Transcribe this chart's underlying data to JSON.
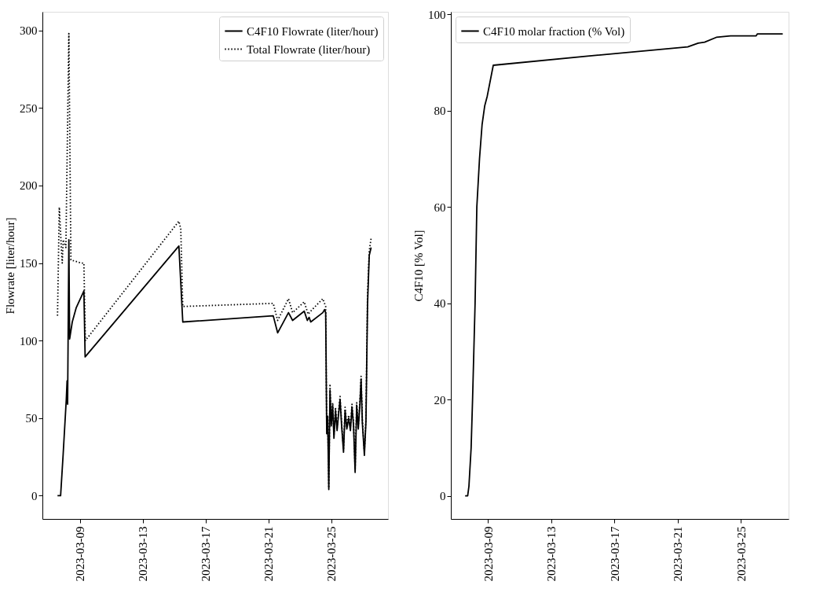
{
  "chart_data": [
    {
      "type": "line",
      "ylabel": "Flowrate [liter/hour]",
      "xlim": [
        "2023-03-06T14:30",
        "2023-03-28T15:00"
      ],
      "xticks": [
        "2023-03-09",
        "2023-03-13",
        "2023-03-17",
        "2023-03-21",
        "2023-03-25"
      ],
      "ylim": [
        -15,
        312
      ],
      "yticks": [
        0,
        50,
        100,
        150,
        200,
        250,
        300
      ],
      "grid": false,
      "legend": "top right",
      "series": [
        {
          "name": "C4F10 Flowrate (liter/hour)",
          "color": "#000000",
          "line_style": "solid",
          "x": [
            "2023-03-07T13:35",
            "2023-03-07T18:20",
            "2023-03-07T22:16",
            "2023-03-08T03:00",
            "2023-03-08T04:12",
            "2023-03-08T05:02",
            "2023-03-08T06:56",
            "2023-03-08T08:07",
            "2023-03-08T12:09",
            "2023-03-08T18:04",
            "2023-03-09T05:56",
            "2023-03-09T07:49",
            "2023-03-15T07:12",
            "2023-03-15T13:09",
            "2023-03-21T07:28",
            "2023-03-21T14:14",
            "2023-03-22T06:49",
            "2023-03-22T13:06",
            "2023-03-23T06:53",
            "2023-03-23T11:37",
            "2023-03-23T14:24",
            "2023-03-23T16:48",
            "2023-03-24T11:17",
            "2023-03-24T14:02",
            "2023-03-24T15:42",
            "2023-03-24T17:17",
            "2023-03-24T18:43",
            "2023-03-24T20:27",
            "2023-03-24T22:19",
            "2023-03-25T00:14",
            "2023-03-25T02:24",
            "2023-03-25T04:19",
            "2023-03-25T06:43",
            "2023-03-25T09:07",
            "2023-03-25T11:17",
            "2023-03-25T13:41",
            "2023-03-25T16:05",
            "2023-03-25T18:58",
            "2023-03-25T21:22",
            "2023-03-26T00:00",
            "2023-03-26T02:53",
            "2023-03-26T05:31",
            "2023-03-26T07:55",
            "2023-03-26T10:19",
            "2023-03-26T12:43",
            "2023-03-26T15:07",
            "2023-03-26T17:31",
            "2023-03-26T19:55",
            "2023-03-26T21:50",
            "2023-03-26T23:46",
            "2023-03-27T02:53",
            "2023-03-27T05:17",
            "2023-03-27T07:41",
            "2023-03-27T10:19",
            "2023-03-27T13:12"
          ],
          "values": [
            0,
            0,
            27,
            62,
            74,
            59,
            165,
            101,
            112,
            121,
            132,
            89.5,
            161,
            112,
            116,
            105,
            118,
            113,
            119,
            113,
            115,
            112,
            118,
            120,
            118,
            40,
            50,
            4,
            68,
            45,
            58,
            37,
            55,
            42,
            52,
            62,
            45,
            28,
            55,
            43,
            50,
            42,
            57,
            45,
            15,
            58,
            43,
            58,
            75,
            47,
            26,
            48,
            123,
            155,
            160
          ]
        },
        {
          "name": "Total Flowrate (liter/hour)",
          "color": "#000000",
          "line_style": "dotted",
          "x": [
            "2023-03-07T13:35",
            "2023-03-07T16:19",
            "2023-03-07T19:26",
            "2023-03-07T20:50",
            "2023-03-07T22:19",
            "2023-03-08T02:24",
            "2023-03-08T06:56",
            "2023-03-08T10:05",
            "2023-03-09T01:55",
            "2023-03-09T05:56",
            "2023-03-09T08:10",
            "2023-03-15T07:12",
            "2023-03-15T10:05",
            "2023-03-15T13:09",
            "2023-03-21T07:28",
            "2023-03-21T14:14",
            "2023-03-22T06:49",
            "2023-03-22T13:06",
            "2023-03-23T06:53",
            "2023-03-23T12:50",
            "2023-03-23T16:48",
            "2023-03-24T11:17",
            "2023-03-24T15:42",
            "2023-03-24T17:17",
            "2023-03-24T18:43",
            "2023-03-24T20:27",
            "2023-03-24T22:19",
            "2023-03-25T00:14",
            "2023-03-25T02:24",
            "2023-03-25T04:19",
            "2023-03-25T06:43",
            "2023-03-25T09:07",
            "2023-03-25T11:17",
            "2023-03-25T13:41",
            "2023-03-25T16:05",
            "2023-03-25T18:58",
            "2023-03-25T21:22",
            "2023-03-26T00:00",
            "2023-03-26T02:53",
            "2023-03-26T05:31",
            "2023-03-26T07:55",
            "2023-03-26T10:19",
            "2023-03-26T12:43",
            "2023-03-26T15:07",
            "2023-03-26T17:31",
            "2023-03-26T19:55",
            "2023-03-26T21:50",
            "2023-03-26T23:46",
            "2023-03-27T02:53",
            "2023-03-27T05:17",
            "2023-03-27T07:41",
            "2023-03-27T10:19",
            "2023-03-27T13:12"
          ],
          "values": [
            116,
            186,
            160,
            150,
            165,
            160,
            298,
            152,
            150,
            150,
            100,
            177,
            172,
            122,
            124,
            113,
            127,
            118,
            125,
            117,
            119,
            127,
            122,
            42,
            52,
            5,
            72,
            47,
            60,
            39,
            57,
            44,
            54,
            64,
            47,
            30,
            57,
            45,
            52,
            44,
            59,
            47,
            17,
            60,
            45,
            60,
            77,
            49,
            28,
            50,
            130,
            158,
            166
          ]
        }
      ]
    },
    {
      "type": "line",
      "ylabel": "C4F10 [% Vol]",
      "xlim": [
        "2023-03-06T15:30",
        "2023-03-28T00:15"
      ],
      "xticks": [
        "2023-03-09",
        "2023-03-13",
        "2023-03-17",
        "2023-03-21",
        "2023-03-25"
      ],
      "ylim": [
        -4.8,
        100.5
      ],
      "yticks": [
        0,
        20,
        40,
        60,
        80,
        100
      ],
      "grid": false,
      "legend": "top left",
      "series": [
        {
          "name": "C4F10 molar fraction (% Vol)",
          "color": "#000000",
          "line_style": "solid",
          "x": [
            "2023-03-07T13:12",
            "2023-03-07T17:02",
            "2023-03-07T18:58",
            "2023-03-07T22:19",
            "2023-03-08T00:29",
            "2023-03-08T04:19",
            "2023-03-08T06:58",
            "2023-03-08T11:02",
            "2023-03-08T14:53",
            "2023-03-08T18:58",
            "2023-03-08T22:48",
            "2023-03-09T07:55",
            "2023-03-15T06:58",
            "2023-03-21T15:07",
            "2023-03-22T06:58",
            "2023-03-22T16:48",
            "2023-03-23T10:34",
            "2023-03-24T08:10",
            "2023-03-25T23:02",
            "2023-03-26T00:43",
            "2023-03-27T15:22"
          ],
          "values": [
            0,
            0,
            2,
            10,
            20,
            40,
            60,
            70,
            77,
            81,
            83,
            89.4,
            91.3,
            93.2,
            94.0,
            94.2,
            95.2,
            95.5,
            95.5,
            95.9,
            95.9
          ]
        }
      ]
    }
  ]
}
